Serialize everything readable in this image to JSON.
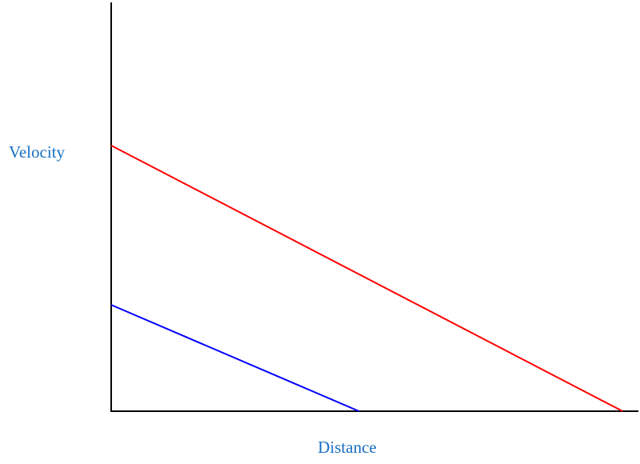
{
  "chart_data": {
    "type": "line",
    "x_label": "Distance",
    "y_label": "Velocity",
    "label_color": "#1a6fc4",
    "xlim": [
      0,
      100
    ],
    "ylim": [
      0,
      100
    ],
    "series": [
      {
        "color": "#ff0000",
        "x": [
          0,
          97
        ],
        "values": [
          65,
          0
        ]
      },
      {
        "color": "#0000ff",
        "x": [
          0,
          47
        ],
        "values": [
          26,
          0
        ]
      }
    ]
  }
}
